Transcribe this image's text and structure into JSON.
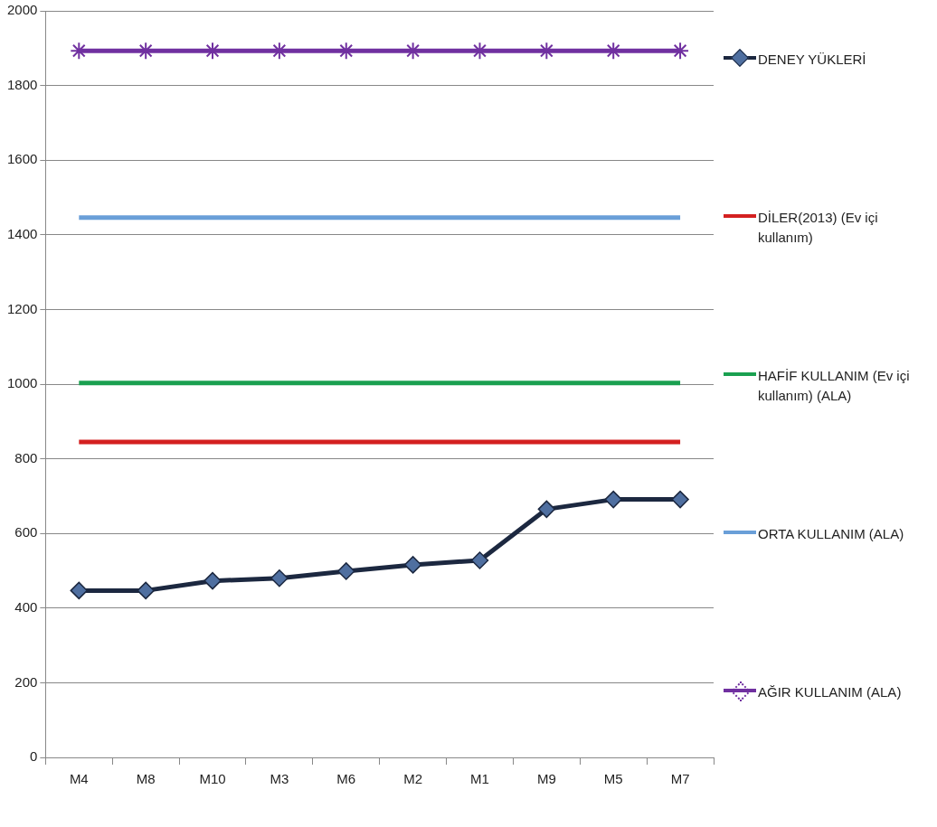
{
  "chart_data": {
    "type": "line",
    "categories": [
      "M4",
      "M8",
      "M10",
      "M3",
      "M6",
      "M2",
      "M1",
      "M9",
      "M5",
      "M7"
    ],
    "ylim": [
      0,
      2000
    ],
    "yticks": [
      0,
      200,
      400,
      600,
      800,
      1000,
      1200,
      1400,
      1600,
      1800,
      2000
    ],
    "grid": "y",
    "legend": "right",
    "line_style": "solid",
    "series": [
      {
        "name": "DENEY YÜKLERİ",
        "color": "#1c2840",
        "marker": "diamond",
        "values": [
          447,
          447,
          473,
          480,
          499,
          516,
          528,
          665,
          691,
          691
        ]
      },
      {
        "name": "DİLER(2013) (Ev içi kullanım)",
        "color": "#d42020",
        "marker": "none",
        "values": [
          845,
          845,
          845,
          845,
          845,
          845,
          845,
          845,
          845,
          845
        ]
      },
      {
        "name": "HAFİF KULLANIM (Ev içi kullanım) (ALA)",
        "color": "#1aa050",
        "marker": "none",
        "values": [
          1003,
          1003,
          1003,
          1003,
          1003,
          1003,
          1003,
          1003,
          1003,
          1003
        ]
      },
      {
        "name": "ORTA KULLANIM (ALA)",
        "color": "#6a9fd8",
        "marker": "none",
        "values": [
          1446,
          1446,
          1446,
          1446,
          1446,
          1446,
          1446,
          1446,
          1446,
          1446
        ]
      },
      {
        "name": "AĞIR KULLANIM (ALA)",
        "color": "#7030a0",
        "marker": "cross",
        "values": [
          1893,
          1893,
          1893,
          1893,
          1893,
          1893,
          1893,
          1893,
          1893,
          1893
        ]
      }
    ]
  }
}
